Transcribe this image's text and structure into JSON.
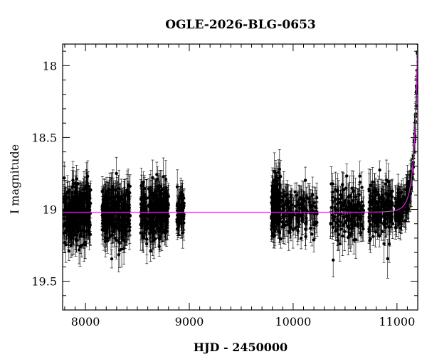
{
  "chart_data": {
    "type": "scatter",
    "title": "OGLE-2026-BLG-0653",
    "xlabel": "HJD - 2450000",
    "ylabel": "I magnitude",
    "xlim": [
      7780,
      11200
    ],
    "ylim": [
      19.7,
      17.85
    ],
    "y_inverted": true,
    "x_ticks": [
      8000,
      9000,
      10000,
      11000
    ],
    "x_tick_labels": [
      "8000",
      "9000",
      "10000",
      "11000"
    ],
    "y_ticks": [
      18,
      18.5,
      19,
      19.5
    ],
    "y_tick_labels": [
      "18",
      "18.5",
      "19",
      "19.5"
    ],
    "grid": false,
    "seasons": [
      {
        "x_range": [
          7790,
          8050
        ],
        "mean_mag": 19.03,
        "spread": 0.09,
        "n_points": 320
      },
      {
        "x_range": [
          8160,
          8430
        ],
        "mean_mag": 19.03,
        "spread": 0.09,
        "n_points": 300
      },
      {
        "x_range": [
          8530,
          8800
        ],
        "mean_mag": 19.02,
        "spread": 0.09,
        "n_points": 300
      },
      {
        "x_range": [
          8880,
          8950
        ],
        "mean_mag": 19.02,
        "spread": 0.07,
        "n_points": 60
      },
      {
        "x_range": [
          9790,
          9880
        ],
        "mean_mag": 18.98,
        "spread": 0.11,
        "n_points": 130
      },
      {
        "x_range": [
          9880,
          10230
        ],
        "mean_mag": 19.02,
        "spread": 0.08,
        "n_points": 150
      },
      {
        "x_range": [
          10360,
          10680
        ],
        "mean_mag": 19.0,
        "spread": 0.09,
        "n_points": 160
      },
      {
        "x_range": [
          10730,
          10960
        ],
        "mean_mag": 19.0,
        "spread": 0.09,
        "n_points": 170
      },
      {
        "x_range": [
          10980,
          11200
        ],
        "mean_mag": null,
        "spread": 0.05,
        "n_points": 140,
        "note": "rising"
      }
    ],
    "model": {
      "name": "model",
      "color": "#cc33cc",
      "baseline_mag": 19.02,
      "t0": 11220,
      "tE": 70,
      "u0": 0.18
    },
    "point_color": "#000000",
    "errorbar_color": "#000000"
  }
}
